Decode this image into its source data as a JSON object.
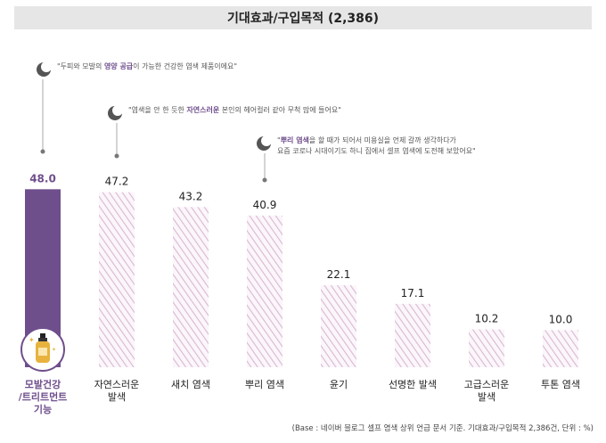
{
  "title": "기대효과/구입목적 (2,386)",
  "quotes": [
    {
      "pre": "\"두피와 모발의 ",
      "bold": "영양 공급",
      "post": "이 가능한 건강한 염색 제품이에요\"",
      "line2": ""
    },
    {
      "pre": "\"염색을 안 한 듯한 ",
      "bold": "자연스러운",
      "post": " 본인의 헤어컬러 같아 무척 맘에 들어요\"",
      "line2": ""
    },
    {
      "pre": "\"",
      "bold": "뿌리 염색",
      "post": "을 할 때가 되어서 미용실을 언제 갈까 생각하다가",
      "line2": "요즘 코로나 시대이기도 하니 집에서 셀프 염색에 도전해 보았어요\""
    }
  ],
  "footnote": "(Base : 네이버 블로그 셀프 염색 상위 언급 문서 기준. 기대효과/구입목적 2,386건, 단위 : %)",
  "colors": {
    "highlight": "#6f4e8c",
    "hatch": "#d9b8d4",
    "hatch_bg": "#fbf6fa"
  },
  "chart_data": {
    "type": "bar",
    "title": "기대효과/구입목적 (2,386)",
    "categories": [
      "모발건강\n/트리트먼트\n기능",
      "자연스러운\n발색",
      "새치 염색",
      "뿌리 염색",
      "윤기",
      "선명한 발색",
      "고급스러운\n발색",
      "투톤 염색"
    ],
    "values": [
      48.0,
      47.2,
      43.2,
      40.9,
      22.1,
      17.1,
      10.2,
      10.0
    ],
    "value_labels": [
      "48.0",
      "47.2",
      "43.2",
      "40.9",
      "22.1",
      "17.1",
      "10.2",
      "10.0"
    ],
    "highlight_index": 0,
    "ylim": [
      0,
      50
    ],
    "grid": false,
    "legend": "none"
  }
}
